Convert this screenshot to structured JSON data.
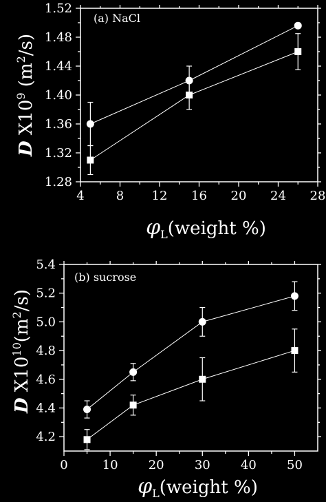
{
  "chart_data": [
    {
      "type": "line",
      "panel_label": "(a) NaCl",
      "xlabel_symbol": "φ",
      "xlabel_sub": "L",
      "xlabel_rest": "(weight %)",
      "ylabel_symbol": "D",
      "ylabel_exp": "9",
      "ylabel_unit_pre": " X10",
      "ylabel_unit_post": " (m",
      "ylabel_unit_sup2": "2",
      "ylabel_unit_tail": "/s)",
      "xlim": [
        4,
        28
      ],
      "ylim": [
        1.28,
        1.52
      ],
      "xticks": [
        "4",
        "8",
        "12",
        "16",
        "20",
        "24",
        "28"
      ],
      "yticks": [
        "1.28",
        "1.32",
        "1.36",
        "1.40",
        "1.44",
        "1.48",
        "1.52"
      ],
      "series": [
        {
          "marker": "circle",
          "x": [
            5,
            15,
            26
          ],
          "y": [
            1.36,
            1.42,
            1.496
          ],
          "err": [
            0.03,
            0.02,
            0.0
          ]
        },
        {
          "marker": "square",
          "x": [
            5,
            15,
            26
          ],
          "y": [
            1.31,
            1.4,
            1.46
          ],
          "err": [
            0.02,
            0.02,
            0.025
          ]
        }
      ],
      "legend": "none",
      "grid": false
    },
    {
      "type": "line",
      "panel_label": "(b) sucrose",
      "xlabel_symbol": "φ",
      "xlabel_sub": "L",
      "xlabel_rest": "(weight %)",
      "ylabel_symbol": "D",
      "ylabel_exp": "10",
      "ylabel_unit_pre": " X10",
      "ylabel_unit_post": "(m",
      "ylabel_unit_sup2": "2",
      "ylabel_unit_tail": "/s)",
      "xlim": [
        0,
        55
      ],
      "ylim": [
        4.1,
        5.4
      ],
      "xticks": [
        "0",
        "10",
        "20",
        "30",
        "40",
        "50"
      ],
      "yticks": [
        "4.2",
        "4.4",
        "4.6",
        "4.8",
        "5.0",
        "5.2",
        "5.4"
      ],
      "series": [
        {
          "marker": "circle",
          "x": [
            5,
            15,
            30,
            50
          ],
          "y": [
            4.39,
            4.65,
            5.0,
            5.18
          ],
          "err": [
            0.06,
            0.06,
            0.1,
            0.1
          ]
        },
        {
          "marker": "square",
          "x": [
            5,
            15,
            30,
            50
          ],
          "y": [
            4.18,
            4.42,
            4.6,
            4.8
          ],
          "err": [
            0.07,
            0.07,
            0.15,
            0.15
          ]
        }
      ],
      "legend": "none",
      "grid": false
    }
  ]
}
